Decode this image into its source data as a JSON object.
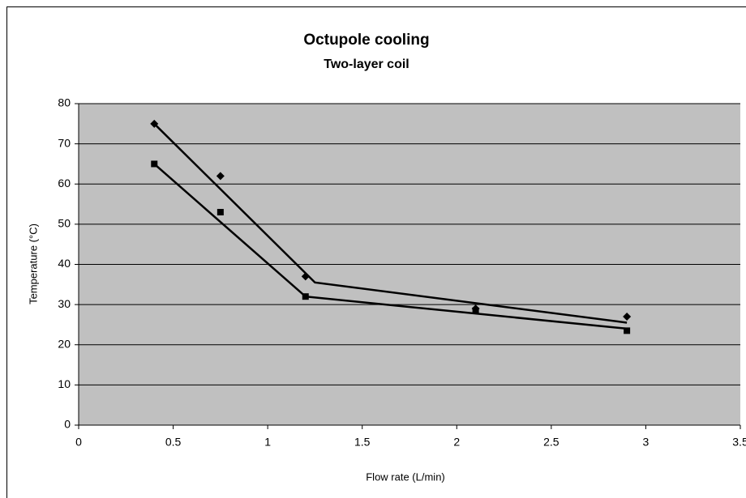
{
  "chart_data": {
    "type": "scatter",
    "title": "Octupole cooling",
    "subtitle": "Two-layer coil",
    "x_label": "Flow rate (L/min)",
    "y_label": "Temperature (°C)",
    "series": [
      {
        "marker": "diamond",
        "color": "#000000",
        "x": [
          0.4,
          0.75,
          1.2,
          2.1,
          2.9
        ],
        "values": [
          75,
          62,
          37,
          29,
          27
        ],
        "trend_x": [
          0.4,
          1.25,
          2.9
        ],
        "trend_values": [
          75,
          35.5,
          25.5
        ]
      },
      {
        "marker": "square",
        "color": "#000000",
        "x": [
          0.4,
          0.75,
          1.2,
          2.1,
          2.9
        ],
        "values": [
          65,
          53,
          32,
          28.5,
          23.5
        ],
        "trend_x": [
          0.4,
          1.2,
          2.9
        ],
        "trend_values": [
          65,
          32,
          24
        ]
      }
    ],
    "xlim": [
      0,
      3.5
    ],
    "xticks": [
      0,
      0.5,
      1,
      1.5,
      2,
      2.5,
      3,
      3.5
    ],
    "ylim": [
      0,
      80
    ],
    "yticks": [
      0,
      10,
      20,
      30,
      40,
      50,
      60,
      70,
      80
    ],
    "grid": true,
    "plot_background": "#c0c0c0"
  }
}
